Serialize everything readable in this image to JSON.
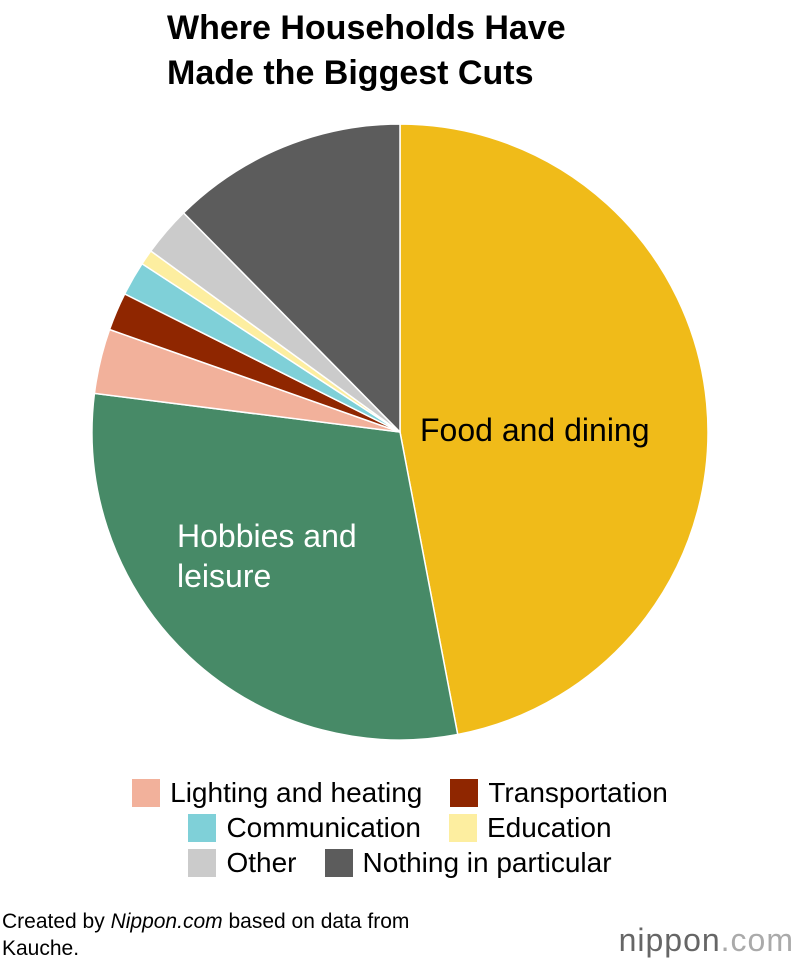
{
  "chart_data": {
    "type": "pie",
    "title": "Where Households Have Made the Biggest Cuts",
    "categories": [
      "Food and dining",
      "Hobbies and leisure",
      "Lighting and heating",
      "Transportation",
      "Communication",
      "Education",
      "Other",
      "Nothing in particular"
    ],
    "values": [
      47,
      30,
      3.4,
      2,
      1.8,
      0.8,
      2.6,
      12.4
    ],
    "colors": [
      "#f0bb19",
      "#478a67",
      "#f2b19b",
      "#8f2600",
      "#7fd0d8",
      "#fdeea0",
      "#cbcbcb",
      "#5c5c5c"
    ],
    "source": [
      "Created by ",
      "Nippon.com",
      " based on data from Kauche."
    ],
    "logo": [
      "nippon",
      ".com"
    ]
  }
}
